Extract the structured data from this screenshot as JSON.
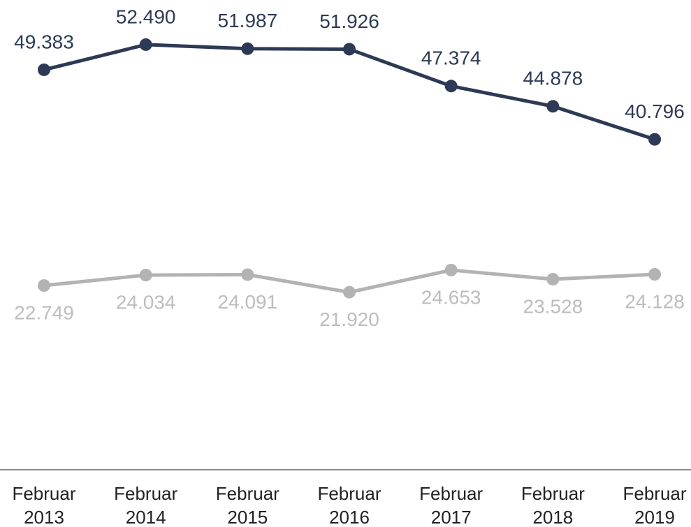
{
  "chart_data": {
    "type": "line",
    "categories": [
      "Februar 2013",
      "Februar 2014",
      "Februar 2015",
      "Februar 2016",
      "Februar 2017",
      "Februar 2018",
      "Februar 2019"
    ],
    "series": [
      {
        "color": "#2d3a55",
        "label_color": "#2d3a55",
        "label_position": "above",
        "values": [
          49383,
          52490,
          51987,
          51926,
          47374,
          44878,
          40796
        ],
        "value_labels": [
          "49.383",
          "52.490",
          "51.987",
          "51.926",
          "47.374",
          "44.878",
          "40.796"
        ]
      },
      {
        "color": "#b3b3b3",
        "label_color": "#bdbdbd",
        "label_position": "below",
        "values": [
          22749,
          24034,
          24091,
          21920,
          24653,
          23528,
          24128
        ],
        "value_labels": [
          "22.749",
          "24.034",
          "24.091",
          "21.920",
          "24.653",
          "23.528",
          "24.128"
        ]
      }
    ],
    "ylim": [
      0,
      58000
    ]
  }
}
